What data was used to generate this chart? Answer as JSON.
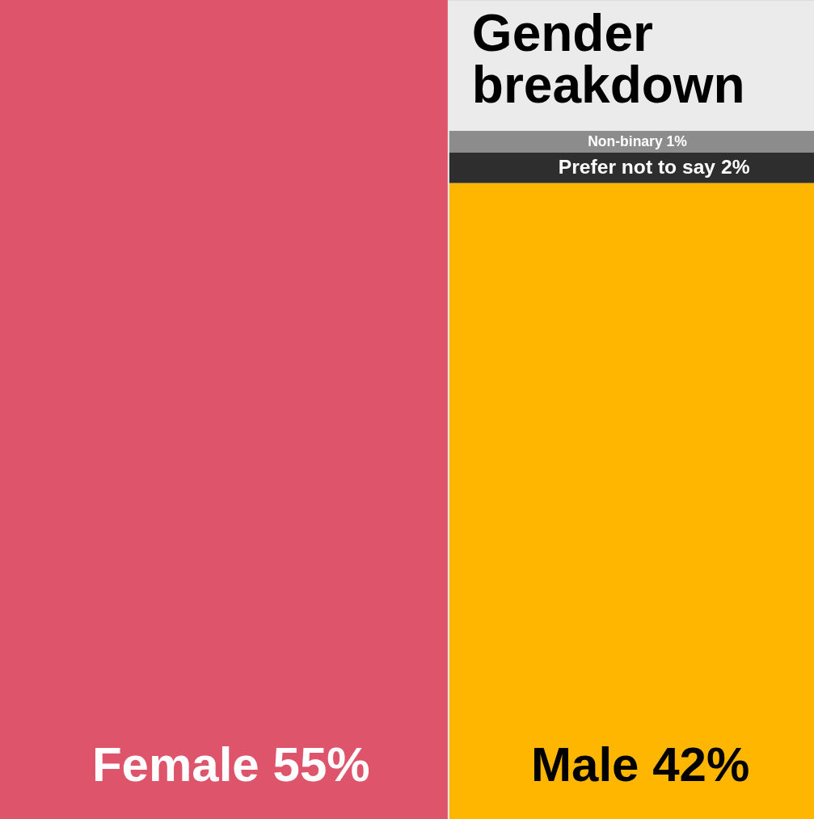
{
  "chart_data": {
    "type": "other",
    "title": "Gender breakdown",
    "categories": [
      "Female",
      "Male",
      "Prefer not to say",
      "Non-binary"
    ],
    "values": [
      55,
      42,
      2,
      1
    ],
    "value_labels": [
      "55%",
      "42%",
      "2%",
      "1%"
    ],
    "colors": [
      "#de546b",
      "#ffb600",
      "#2e2e2e",
      "#8c8c8c"
    ]
  }
}
